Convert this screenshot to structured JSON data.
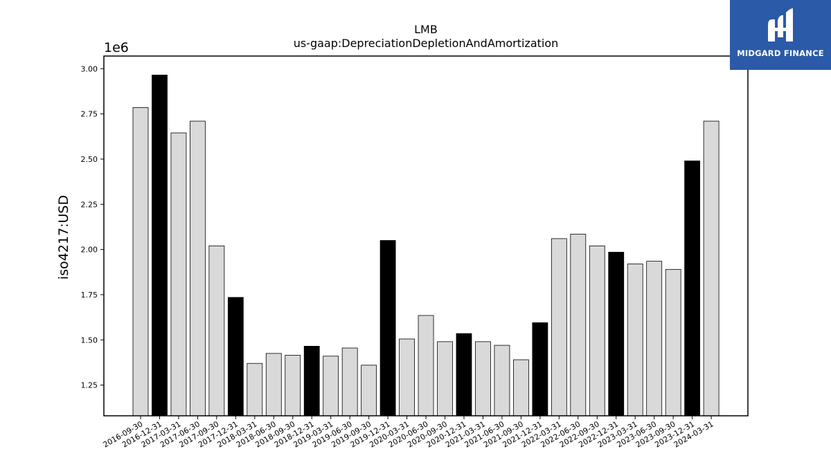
{
  "brand": {
    "name": "MIDGARD FINANCE",
    "bg_color": "#2b5aa8"
  },
  "chart_data": {
    "type": "bar",
    "title": "LMB",
    "subtitle": "us-gaap:DepreciationDepletionAndAmortization",
    "ylabel": "iso4217:USD",
    "xlabel": "",
    "y_scale_note": "1e6",
    "ylim": [
      1.08,
      3.07
    ],
    "yticks": [
      "1.25",
      "1.50",
      "1.75",
      "2.00",
      "2.25",
      "2.50",
      "2.75",
      "3.00"
    ],
    "grid": false,
    "colors": {
      "quarter": "#d9d9d9",
      "year_end": "#000000",
      "edge": "#000000"
    },
    "categories": [
      "2016-09-30",
      "2016-12-31",
      "2017-03-31",
      "2017-06-30",
      "2017-09-30",
      "2017-12-31",
      "2018-03-31",
      "2018-06-30",
      "2018-09-30",
      "2018-12-31",
      "2019-03-31",
      "2019-06-30",
      "2019-09-30",
      "2019-12-31",
      "2020-03-31",
      "2020-06-30",
      "2020-09-30",
      "2020-12-31",
      "2021-03-31",
      "2021-06-30",
      "2021-09-30",
      "2021-12-31",
      "2022-03-31",
      "2022-06-30",
      "2022-09-30",
      "2022-12-31",
      "2023-03-31",
      "2023-06-30",
      "2023-09-30",
      "2023-12-31",
      "2024-03-31"
    ],
    "values": [
      2.785,
      2.965,
      2.645,
      2.71,
      2.02,
      1.735,
      1.37,
      1.425,
      1.415,
      1.465,
      1.41,
      1.455,
      1.36,
      2.05,
      1.505,
      1.635,
      1.49,
      1.535,
      1.49,
      1.47,
      1.39,
      1.595,
      2.06,
      2.085,
      2.02,
      1.985,
      1.92,
      1.935,
      1.89,
      2.49,
      2.71
    ],
    "year_end": [
      false,
      true,
      false,
      false,
      false,
      true,
      false,
      false,
      false,
      true,
      false,
      false,
      false,
      true,
      false,
      false,
      false,
      true,
      false,
      false,
      false,
      true,
      false,
      false,
      false,
      true,
      false,
      false,
      false,
      true,
      false
    ]
  }
}
